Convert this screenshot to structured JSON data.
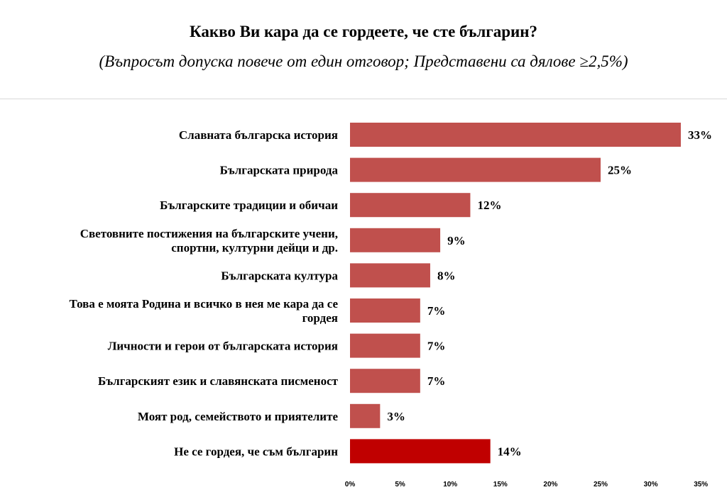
{
  "chart_data": {
    "type": "bar",
    "orientation": "horizontal",
    "title": "Какво Ви кара да се гордеете, че сте българин?",
    "subtitle": "(Въпросът допуска повече от един отговор; Представени са дялове ≥2,5%)",
    "categories": [
      [
        "Славната българска история"
      ],
      [
        "Българската природа"
      ],
      [
        "Българските традиции и обичаи"
      ],
      [
        "Световните постижения на българските учени,",
        "спортни, културни дейци и др."
      ],
      [
        "Българската култура"
      ],
      [
        "Това е моята Родина и всичко в нея ме кара да се",
        "гордея"
      ],
      [
        "Личности и герои от българската история"
      ],
      [
        "Българският език и славянската писменост"
      ],
      [
        "Моят род, семейството и приятелите"
      ],
      [
        "Не се гордея, че съм българин"
      ]
    ],
    "values": [
      33,
      25,
      12,
      9,
      8,
      7,
      7,
      7,
      3,
      14
    ],
    "value_labels": [
      "33%",
      "25%",
      "12%",
      "9%",
      "8%",
      "7%",
      "7%",
      "7%",
      "3%",
      "14%"
    ],
    "xlim": [
      0,
      35
    ],
    "x_ticks": [
      0,
      5,
      10,
      15,
      20,
      25,
      30,
      35
    ],
    "x_tick_labels": [
      "0%",
      "5%",
      "10%",
      "15%",
      "20%",
      "25%",
      "30%",
      "35%"
    ],
    "grid": false,
    "legend": "none",
    "colors": {
      "bar": "#c0504d",
      "highlight_bar": "#c00000",
      "highlight_index": 9
    }
  }
}
